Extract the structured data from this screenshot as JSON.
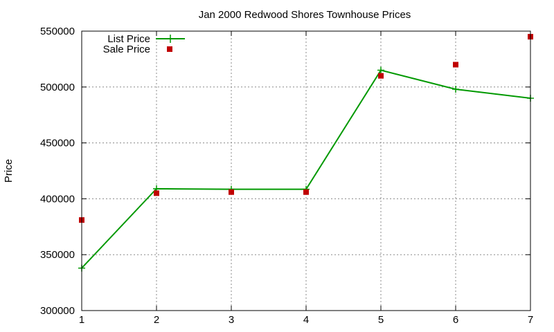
{
  "chart_data": {
    "type": "line",
    "title": "Jan 2000 Redwood Shores Townhouse Prices",
    "xlabel": "",
    "ylabel": "Price",
    "xlim": [
      1,
      7
    ],
    "ylim": [
      300000,
      550000
    ],
    "xticks": [
      1,
      2,
      3,
      4,
      5,
      6,
      7
    ],
    "yticks": [
      300000,
      350000,
      400000,
      450000,
      500000,
      550000
    ],
    "grid": true,
    "legend_position": "top-left",
    "series": [
      {
        "name": "List Price",
        "style": "line-points",
        "color": "#009900",
        "marker": "plus",
        "x": [
          1,
          2,
          3,
          4,
          5,
          6,
          7
        ],
        "y": [
          338000,
          409000,
          408500,
          408500,
          515000,
          498000,
          490000
        ]
      },
      {
        "name": "Sale Price",
        "style": "points",
        "color": "#c00000",
        "marker": "square",
        "x": [
          1,
          2,
          3,
          4,
          5,
          6,
          7
        ],
        "y": [
          381000,
          405000,
          406000,
          406000,
          510000,
          520000,
          545000
        ]
      }
    ]
  }
}
